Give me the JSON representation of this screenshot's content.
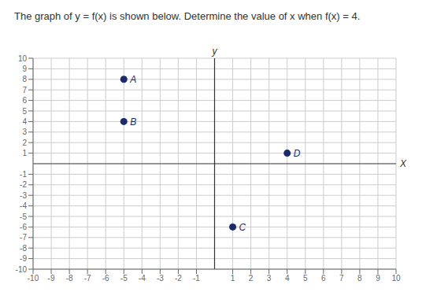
{
  "chart_data": {
    "type": "scatter",
    "title": "The graph of y = f(x) is shown below. Determine the value of x when f(x) = 4.",
    "x": [
      -5,
      -5,
      1,
      4
    ],
    "values": [
      8,
      4,
      -6,
      1
    ],
    "color": "#1a2a6c",
    "annotations": [
      {
        "x": -5,
        "y": 8,
        "text": "A"
      },
      {
        "x": -5,
        "y": 4,
        "text": "B"
      },
      {
        "x": 1,
        "y": -6,
        "text": "C"
      },
      {
        "x": 4,
        "y": 1,
        "text": "D"
      }
    ],
    "xlabel": "X",
    "ylabel": "y",
    "xlim": [
      -10,
      10
    ],
    "ylim": [
      -10,
      10
    ],
    "xticks": [
      -10,
      -9,
      -8,
      -7,
      -6,
      -5,
      -4,
      -3,
      -2,
      -1,
      1,
      2,
      3,
      4,
      5,
      6,
      7,
      8,
      9,
      10
    ],
    "yticks": [
      -10,
      -9,
      -8,
      -7,
      -6,
      -5,
      -4,
      -3,
      -2,
      -1,
      1,
      2,
      3,
      4,
      5,
      6,
      7,
      8,
      9,
      10
    ],
    "grid": true
  }
}
